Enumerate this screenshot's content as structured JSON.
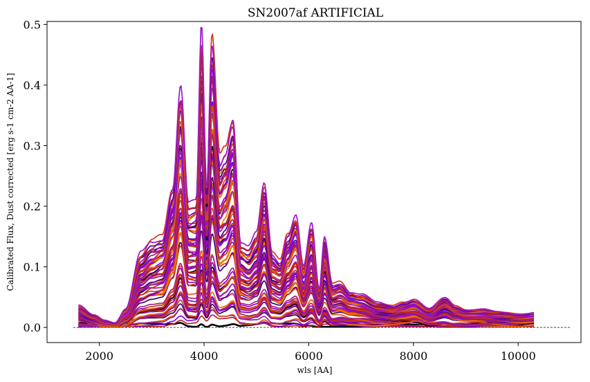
{
  "chart_data": {
    "type": "line",
    "title": "SN2007af ARTIFICIAL",
    "xlabel": "wls [AA]",
    "ylabel": "Calibrated Flux, Dust corrected [erg s-1 cm-2 AA-1]",
    "xlim": [
      1000,
      11200
    ],
    "ylim": [
      -0.025,
      0.505
    ],
    "xticks": [
      2000,
      4000,
      6000,
      8000,
      10000
    ],
    "xtick_labels": [
      "2000",
      "4000",
      "6000",
      "8000",
      "10000"
    ],
    "yticks": [
      0.0,
      0.1,
      0.2,
      0.3,
      0.4,
      0.5
    ],
    "ytick_labels": [
      "0.0",
      "0.1",
      "0.2",
      "0.3",
      "0.4",
      "0.5"
    ],
    "grid": false,
    "legend": "none",
    "x_range": [
      1600,
      10300
    ],
    "series_count": 60,
    "colormap": [
      "#000004",
      "#7a00e6",
      "#9b18c8",
      "#b8202a",
      "#d93a10",
      "#f08a00"
    ],
    "reference_line": {
      "y": 0.0,
      "x": [
        1500,
        11000
      ],
      "style": "dashed",
      "color": "#000000"
    },
    "envelope_profile": {
      "x": [
        1600,
        1900,
        2100,
        2300,
        2500,
        2800,
        3000,
        3200,
        3400,
        3550,
        3700,
        3850,
        3950,
        4050,
        4150,
        4300,
        4400,
        4550,
        4700,
        4850,
        5000,
        5150,
        5300,
        5450,
        5600,
        5750,
        5900,
        6050,
        6200,
        6300,
        6450,
        6600,
        6800,
        7000,
        7300,
        7600,
        7800,
        8000,
        8300,
        8600,
        8800,
        9000,
        9300,
        9600,
        10000,
        10300
      ],
      "y": [
        0.035,
        0.02,
        0.012,
        0.008,
        0.03,
        0.12,
        0.14,
        0.15,
        0.24,
        0.405,
        0.2,
        0.2,
        0.478,
        0.22,
        0.468,
        0.28,
        0.3,
        0.36,
        0.14,
        0.13,
        0.15,
        0.23,
        0.12,
        0.11,
        0.16,
        0.192,
        0.1,
        0.165,
        0.06,
        0.145,
        0.07,
        0.075,
        0.06,
        0.055,
        0.04,
        0.035,
        0.042,
        0.048,
        0.03,
        0.048,
        0.035,
        0.03,
        0.03,
        0.025,
        0.022,
        0.025
      ]
    }
  }
}
